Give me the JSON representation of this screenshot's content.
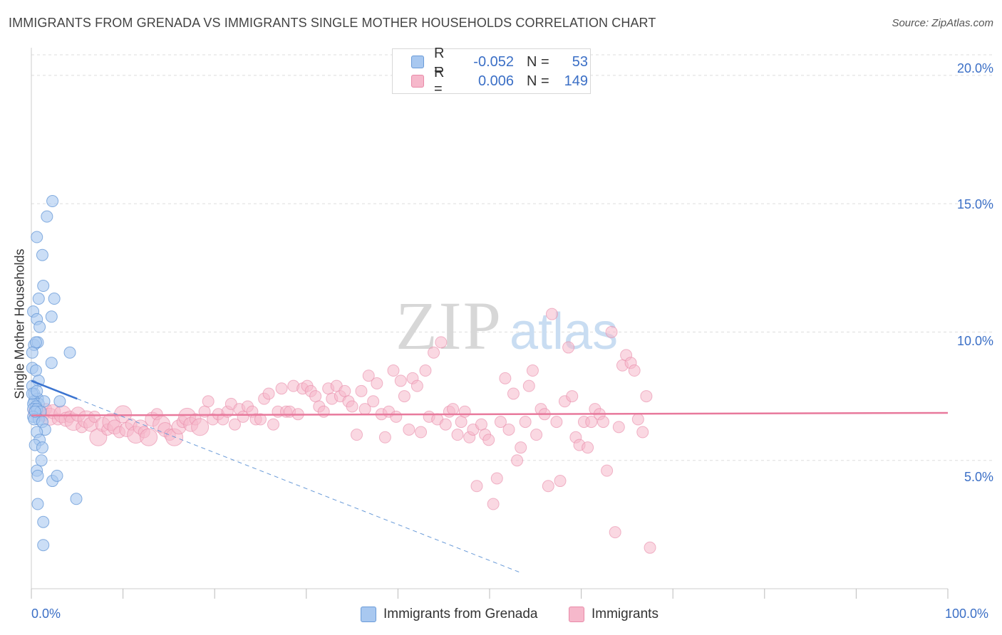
{
  "header": {
    "title": "IMMIGRANTS FROM GRENADA VS IMMIGRANTS SINGLE MOTHER HOUSEHOLDS CORRELATION CHART",
    "source": "Source: ZipAtlas.com"
  },
  "legend": {
    "series1": {
      "r_label": "R =",
      "r_value": "-0.052",
      "n_label": "N =",
      "n_value": "53"
    },
    "series2": {
      "r_label": "R =",
      "r_value": "0.006",
      "n_label": "N =",
      "n_value": "149"
    }
  },
  "bottom_legend": {
    "series1_label": "Immigrants from Grenada",
    "series2_label": "Immigrants"
  },
  "axes": {
    "ylabel": "Single Mother Households",
    "yticks": [
      "20.0%",
      "15.0%",
      "10.0%",
      "5.0%"
    ],
    "xtick_left": "0.0%",
    "xtick_right": "100.0%"
  },
  "watermark": {
    "part1": "ZIP",
    "part2": "atlas"
  },
  "colors": {
    "blue_fill": "#a8c8f0",
    "blue_stroke": "#6a9bd8",
    "blue_line": "#3b74d0",
    "pink_fill": "#f6b8cb",
    "pink_stroke": "#e88aa8",
    "pink_line": "#e8799c",
    "tick_text": "#3b6fc6",
    "grid": "#dddddd"
  },
  "chart_data": {
    "type": "scatter",
    "title": "IMMIGRANTS FROM GRENADA VS IMMIGRANTS SINGLE MOTHER HOUSEHOLDS CORRELATION CHART",
    "xlabel": "",
    "ylabel": "Single Mother Households",
    "xlim": [
      0,
      100
    ],
    "ylim": [
      0,
      20.8
    ],
    "yticks": [
      5,
      10,
      15,
      20
    ],
    "grid": true,
    "series": [
      {
        "name": "Immigrants from Grenada",
        "r": -0.052,
        "n": 53,
        "trend": {
          "x": [
            0,
            5
          ],
          "y": [
            8.1,
            7.4
          ],
          "dashed_extension_to_x": 53.5
        },
        "points": [
          [
            2.3,
            15.1
          ],
          [
            1.7,
            14.5
          ],
          [
            0.6,
            13.7
          ],
          [
            1.2,
            13.0
          ],
          [
            1.3,
            11.8
          ],
          [
            0.8,
            11.3
          ],
          [
            2.5,
            11.3
          ],
          [
            0.2,
            10.8
          ],
          [
            0.6,
            10.5
          ],
          [
            2.2,
            10.6
          ],
          [
            0.9,
            10.2
          ],
          [
            0.3,
            9.5
          ],
          [
            0.7,
            9.6
          ],
          [
            0.5,
            9.6
          ],
          [
            4.2,
            9.2
          ],
          [
            0.1,
            9.2
          ],
          [
            2.2,
            8.8
          ],
          [
            0.1,
            8.6
          ],
          [
            0.5,
            8.5
          ],
          [
            0.8,
            8.1
          ],
          [
            0.1,
            7.9
          ],
          [
            0.3,
            7.6
          ],
          [
            0.7,
            7.4
          ],
          [
            0.3,
            7.3
          ],
          [
            0.8,
            7.2
          ],
          [
            1.4,
            7.3
          ],
          [
            0.2,
            7.2
          ],
          [
            0.5,
            7.1
          ],
          [
            3.1,
            7.3
          ],
          [
            0.2,
            7.0
          ],
          [
            0.6,
            7.0
          ],
          [
            1.0,
            6.9
          ],
          [
            0.2,
            6.7
          ],
          [
            0.8,
            6.6
          ],
          [
            0.3,
            6.6
          ],
          [
            1.2,
            6.5
          ],
          [
            1.5,
            6.2
          ],
          [
            0.6,
            6.1
          ],
          [
            0.9,
            5.8
          ],
          [
            0.4,
            5.6
          ],
          [
            1.2,
            5.5
          ],
          [
            1.1,
            5.0
          ],
          [
            0.6,
            4.6
          ],
          [
            0.7,
            4.4
          ],
          [
            2.3,
            4.2
          ],
          [
            2.8,
            4.4
          ],
          [
            4.9,
            3.5
          ],
          [
            0.7,
            3.3
          ],
          [
            1.3,
            2.6
          ],
          [
            1.3,
            1.7
          ],
          [
            0.1,
            7.6
          ],
          [
            0.4,
            6.9
          ],
          [
            0.6,
            7.7
          ]
        ]
      },
      {
        "name": "Immigrants",
        "r": 0.006,
        "n": 149,
        "trend": {
          "x": [
            0,
            100
          ],
          "y": [
            6.75,
            6.85
          ]
        },
        "points": [
          [
            0.6,
            6.9
          ],
          [
            1.2,
            6.8
          ],
          [
            1.6,
            7.0
          ],
          [
            2.0,
            6.7
          ],
          [
            2.4,
            6.9
          ],
          [
            2.9,
            6.6
          ],
          [
            3.4,
            6.8
          ],
          [
            3.8,
            6.6
          ],
          [
            4.2,
            6.7
          ],
          [
            4.6,
            6.5
          ],
          [
            5.1,
            6.8
          ],
          [
            5.5,
            6.3
          ],
          [
            6.0,
            6.6
          ],
          [
            6.5,
            6.4
          ],
          [
            6.9,
            6.7
          ],
          [
            7.3,
            5.9
          ],
          [
            7.8,
            6.4
          ],
          [
            8.3,
            6.2
          ],
          [
            8.7,
            6.5
          ],
          [
            9.1,
            6.3
          ],
          [
            9.6,
            6.1
          ],
          [
            10.0,
            6.8
          ],
          [
            10.4,
            6.2
          ],
          [
            10.9,
            6.4
          ],
          [
            11.4,
            6.0
          ],
          [
            11.9,
            6.3
          ],
          [
            12.3,
            6.1
          ],
          [
            12.8,
            5.9
          ],
          [
            13.2,
            6.6
          ],
          [
            13.7,
            6.8
          ],
          [
            14.2,
            6.4
          ],
          [
            14.6,
            6.2
          ],
          [
            15.1,
            6.0
          ],
          [
            15.6,
            5.9
          ],
          [
            16.1,
            6.3
          ],
          [
            16.5,
            6.5
          ],
          [
            17.0,
            6.7
          ],
          [
            17.4,
            6.4
          ],
          [
            17.9,
            6.6
          ],
          [
            18.4,
            6.3
          ],
          [
            18.9,
            6.9
          ],
          [
            19.3,
            7.3
          ],
          [
            19.8,
            6.6
          ],
          [
            20.4,
            6.8
          ],
          [
            20.9,
            6.6
          ],
          [
            21.4,
            6.9
          ],
          [
            21.8,
            7.2
          ],
          [
            22.2,
            6.4
          ],
          [
            22.7,
            7.0
          ],
          [
            23.1,
            6.7
          ],
          [
            23.6,
            7.1
          ],
          [
            24.1,
            6.9
          ],
          [
            24.5,
            6.6
          ],
          [
            25.0,
            6.6
          ],
          [
            25.4,
            7.4
          ],
          [
            25.9,
            7.6
          ],
          [
            26.4,
            6.4
          ],
          [
            26.9,
            6.9
          ],
          [
            27.3,
            7.8
          ],
          [
            27.8,
            6.9
          ],
          [
            28.2,
            6.9
          ],
          [
            28.6,
            7.9
          ],
          [
            29.1,
            6.8
          ],
          [
            29.6,
            7.8
          ],
          [
            30.1,
            7.9
          ],
          [
            30.5,
            7.7
          ],
          [
            31.0,
            7.5
          ],
          [
            31.4,
            7.1
          ],
          [
            31.9,
            6.9
          ],
          [
            32.4,
            7.8
          ],
          [
            32.8,
            7.4
          ],
          [
            33.3,
            7.9
          ],
          [
            33.7,
            7.5
          ],
          [
            34.2,
            7.7
          ],
          [
            34.6,
            7.3
          ],
          [
            35.0,
            7.1
          ],
          [
            35.5,
            6.0
          ],
          [
            36.0,
            7.7
          ],
          [
            36.4,
            7.0
          ],
          [
            36.8,
            8.3
          ],
          [
            37.3,
            7.3
          ],
          [
            37.7,
            8.0
          ],
          [
            38.2,
            6.8
          ],
          [
            38.6,
            5.9
          ],
          [
            39.0,
            6.9
          ],
          [
            39.5,
            8.5
          ],
          [
            39.8,
            6.7
          ],
          [
            40.3,
            8.1
          ],
          [
            40.7,
            7.5
          ],
          [
            41.2,
            6.2
          ],
          [
            41.6,
            8.2
          ],
          [
            42.1,
            7.9
          ],
          [
            42.5,
            6.1
          ],
          [
            43.0,
            8.5
          ],
          [
            43.4,
            6.7
          ],
          [
            43.9,
            9.2
          ],
          [
            44.3,
            6.6
          ],
          [
            44.7,
            9.6
          ],
          [
            45.2,
            6.4
          ],
          [
            45.6,
            6.9
          ],
          [
            46.0,
            7.0
          ],
          [
            46.5,
            6.0
          ],
          [
            46.9,
            6.5
          ],
          [
            47.3,
            6.9
          ],
          [
            47.8,
            5.9
          ],
          [
            48.2,
            6.2
          ],
          [
            48.6,
            4.0
          ],
          [
            49.1,
            6.4
          ],
          [
            49.5,
            6.0
          ],
          [
            49.9,
            5.8
          ],
          [
            50.4,
            3.3
          ],
          [
            50.8,
            4.3
          ],
          [
            51.2,
            6.5
          ],
          [
            51.7,
            8.2
          ],
          [
            52.1,
            6.2
          ],
          [
            52.6,
            7.6
          ],
          [
            53.0,
            5.0
          ],
          [
            53.4,
            5.5
          ],
          [
            53.9,
            6.5
          ],
          [
            54.3,
            7.9
          ],
          [
            54.7,
            8.5
          ],
          [
            55.1,
            6.0
          ],
          [
            55.6,
            7.0
          ],
          [
            56.0,
            6.8
          ],
          [
            56.4,
            4.0
          ],
          [
            56.8,
            10.7
          ],
          [
            57.3,
            6.5
          ],
          [
            57.7,
            4.2
          ],
          [
            58.2,
            7.3
          ],
          [
            58.6,
            9.4
          ],
          [
            59.0,
            7.5
          ],
          [
            59.4,
            5.9
          ],
          [
            59.8,
            5.6
          ],
          [
            60.3,
            6.5
          ],
          [
            60.7,
            5.5
          ],
          [
            61.1,
            6.5
          ],
          [
            61.5,
            7.0
          ],
          [
            62.0,
            6.8
          ],
          [
            62.4,
            6.5
          ],
          [
            62.8,
            4.6
          ],
          [
            63.3,
            10.0
          ],
          [
            63.7,
            2.2
          ],
          [
            64.1,
            6.3
          ],
          [
            64.5,
            8.7
          ],
          [
            64.9,
            9.1
          ],
          [
            65.4,
            8.8
          ],
          [
            65.8,
            8.5
          ],
          [
            66.2,
            6.6
          ],
          [
            66.7,
            6.1
          ],
          [
            67.1,
            7.5
          ],
          [
            67.5,
            1.6
          ]
        ]
      }
    ]
  }
}
